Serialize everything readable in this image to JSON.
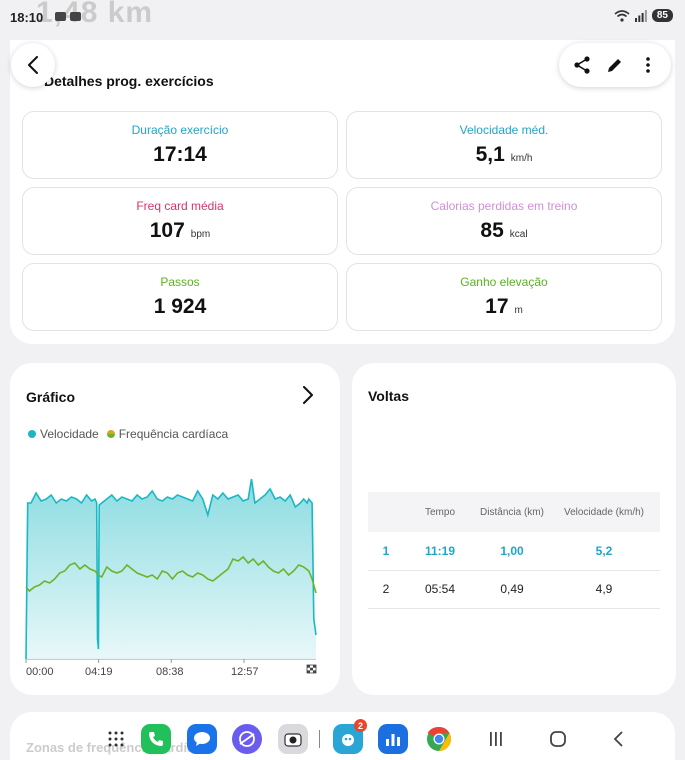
{
  "status_bar": {
    "time": "18:10",
    "ghost_text": "1,48 km",
    "battery": "85"
  },
  "details": {
    "title": "Detalhes prog. exercícios",
    "metrics": [
      {
        "label": "Duração exercício",
        "value": "17:14",
        "unit": "",
        "color": "#1fa6c9"
      },
      {
        "label": "Velocidade méd.",
        "value": "5,1",
        "unit": "km/h",
        "color": "#1fa6c9"
      },
      {
        "label": "Freq card média",
        "value": "107",
        "unit": "bpm",
        "color": "#d6336c"
      },
      {
        "label": "Calorias perdidas em treino",
        "value": "85",
        "unit": "kcal",
        "color": "#d08fd6"
      },
      {
        "label": "Passos",
        "value": "1 924",
        "unit": "",
        "color": "#5ab21f"
      },
      {
        "label": "Ganho elevação",
        "value": "17",
        "unit": "m",
        "color": "#5ab21f"
      }
    ]
  },
  "graph": {
    "title": "Gráfico",
    "legend": [
      {
        "label": "Velocidade",
        "color": "#1ab8c4"
      },
      {
        "label": "Frequência cardíaca",
        "color": "#69b52a"
      }
    ],
    "x_ticks": [
      "00:00",
      "04:19",
      "08:38",
      "12:57"
    ]
  },
  "chart_data": {
    "type": "area",
    "x_ticks": [
      "00:00",
      "04:19",
      "08:38",
      "12:57"
    ],
    "x_minutes_range": [
      0,
      17.23
    ],
    "series": [
      {
        "name": "Velocidade",
        "color": "#1ab8c4",
        "x": [
          0,
          0.1,
          0.3,
          0.6,
          0.9,
          1.2,
          1.5,
          1.8,
          2.1,
          2.4,
          2.7,
          3.0,
          3.3,
          3.6,
          3.9,
          4.1,
          4.2,
          4.25,
          4.3,
          4.35,
          4.5,
          4.8,
          5.1,
          5.4,
          5.7,
          6.0,
          6.3,
          6.6,
          6.9,
          7.2,
          7.5,
          7.8,
          8.1,
          8.4,
          8.7,
          9.0,
          9.3,
          9.6,
          9.9,
          10.2,
          10.5,
          10.8,
          11.1,
          11.4,
          11.7,
          12.0,
          12.3,
          12.6,
          12.9,
          13.2,
          13.4,
          13.6,
          13.9,
          14.2,
          14.5,
          14.8,
          15.1,
          15.4,
          15.7,
          16.0,
          16.3,
          16.5,
          16.6,
          16.7,
          16.8,
          16.9,
          17.0,
          17.1,
          17.23
        ],
        "y": [
          0,
          0.78,
          0.78,
          0.83,
          0.79,
          0.8,
          0.82,
          0.78,
          0.8,
          0.79,
          0.81,
          0.8,
          0.78,
          0.82,
          0.79,
          0.8,
          0.78,
          0.1,
          0.05,
          0.77,
          0.78,
          0.8,
          0.82,
          0.79,
          0.81,
          0.8,
          0.79,
          0.82,
          0.8,
          0.81,
          0.84,
          0.8,
          0.79,
          0.81,
          0.8,
          0.82,
          0.81,
          0.8,
          0.79,
          0.84,
          0.8,
          0.72,
          0.82,
          0.8,
          0.83,
          0.8,
          0.81,
          0.82,
          0.79,
          0.8,
          0.9,
          0.78,
          0.8,
          0.82,
          0.85,
          0.8,
          0.81,
          0.79,
          0.82,
          0.76,
          0.78,
          0.8,
          0.79,
          0.78,
          0.8,
          0.79,
          0.78,
          0.2,
          0.12
        ]
      },
      {
        "name": "Frequência cardíaca",
        "color": "#69b52a",
        "x": [
          0,
          0.2,
          0.5,
          0.8,
          1.1,
          1.4,
          1.7,
          2.0,
          2.3,
          2.6,
          2.9,
          3.2,
          3.5,
          3.8,
          4.1,
          4.3,
          4.5,
          4.8,
          5.1,
          5.4,
          5.7,
          6.0,
          6.3,
          6.6,
          6.9,
          7.2,
          7.5,
          7.8,
          8.1,
          8.4,
          8.7,
          9.0,
          9.3,
          9.6,
          9.9,
          10.2,
          10.5,
          10.8,
          11.1,
          11.4,
          11.7,
          12.0,
          12.3,
          12.6,
          12.9,
          13.2,
          13.5,
          13.8,
          14.1,
          14.4,
          14.7,
          15.0,
          15.3,
          15.6,
          15.9,
          16.2,
          16.5,
          16.8,
          17.0,
          17.23
        ],
        "y": [
          0.36,
          0.34,
          0.36,
          0.37,
          0.39,
          0.38,
          0.4,
          0.43,
          0.44,
          0.47,
          0.48,
          0.45,
          0.47,
          0.45,
          0.44,
          0.42,
          0.41,
          0.46,
          0.44,
          0.43,
          0.44,
          0.47,
          0.45,
          0.43,
          0.42,
          0.41,
          0.42,
          0.4,
          0.44,
          0.43,
          0.4,
          0.43,
          0.44,
          0.42,
          0.41,
          0.43,
          0.42,
          0.4,
          0.39,
          0.41,
          0.43,
          0.45,
          0.5,
          0.49,
          0.51,
          0.48,
          0.5,
          0.47,
          0.49,
          0.46,
          0.44,
          0.43,
          0.45,
          0.42,
          0.44,
          0.47,
          0.46,
          0.44,
          0.4,
          0.33
        ]
      }
    ]
  },
  "laps": {
    "title": "Voltas",
    "headers": [
      "",
      "Tempo",
      "Distância (km)",
      "Velocidade (km/h)"
    ],
    "rows": [
      [
        "1",
        "11:19",
        "1,00",
        "5,2"
      ],
      [
        "2",
        "05:54",
        "0,49",
        "4,9"
      ]
    ]
  },
  "zones": {
    "title": "Zonas de frequência cardíaca"
  },
  "taskbar": {
    "apps": [
      {
        "name": "Apps",
        "icon": "grid-icon"
      },
      {
        "name": "Telefone",
        "icon": "phone-icon",
        "color": "#21c05b"
      },
      {
        "name": "Mensagens",
        "icon": "messages-icon",
        "color": "#1a73e8"
      },
      {
        "name": "Internet",
        "icon": "internet-icon",
        "color": "#6b5cf0"
      },
      {
        "name": "Câmera",
        "icon": "camera-icon",
        "color": "#d9d9de"
      },
      {
        "name": "Jogo",
        "icon": "game-icon",
        "color": "#2aa6d6",
        "badge": "2"
      },
      {
        "name": "Estatísticas",
        "icon": "stats-icon",
        "color": "#1b6fe0"
      },
      {
        "name": "Chrome",
        "icon": "chrome-icon"
      }
    ]
  }
}
